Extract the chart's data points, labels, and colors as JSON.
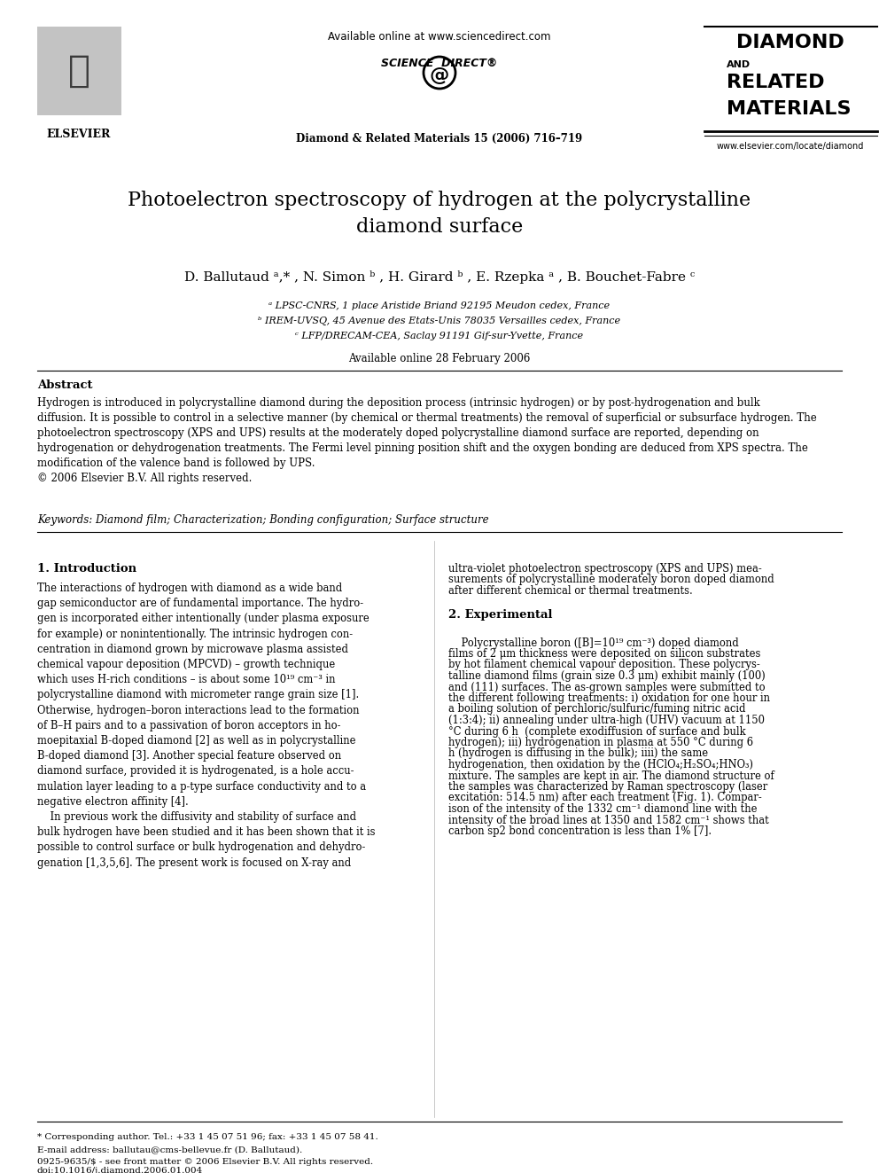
{
  "bg_color": "#ffffff",
  "title": "Photoelectron spectroscopy of hydrogen at the polycrystalline\ndiamond surface",
  "authors": "D. Ballutaud ᵃ,* , N. Simon ᵇ , H. Girard ᵇ , E. Rzepka ᵃ , B. Bouchet-Fabre ᶜ",
  "affil_a": "ᵃ LPSC-CNRS, 1 place Aristide Briand 92195 Meudon cedex, France",
  "affil_b": "ᵇ IREM-UVSQ, 45 Avenue des Etats-Unis 78035 Versailles cedex, France",
  "affil_c": "ᶜ LFP/DRECAM-CEA, Saclay 91191 Gif-sur-Yvette, France",
  "available_online": "Available online 28 February 2006",
  "header_available": "Available online at www.sciencedirect.com",
  "journal_ref": "Diamond & Related Materials 15 (2006) 716–719",
  "journal_name_line1": "DIAMOND",
  "journal_name_line2": "AND",
  "journal_name_line3": "RELATED",
  "journal_name_line4": "MATERIALS",
  "journal_website": "www.elsevier.com/locate/diamond",
  "elsevier_text": "ELSEVIER",
  "abstract_heading": "Abstract",
  "abstract_text": "Hydrogen is introduced in polycrystalline diamond during the deposition process (intrinsic hydrogen) or by post-hydrogenation and bulk\ndiffusion. It is possible to control in a selective manner (by chemical or thermal treatments) the removal of superficial or subsurface hydrogen. The\nphotoelectron spectroscopy (XPS and UPS) results at the moderately doped polycrystalline diamond surface are reported, depending on\nhydrogenation or dehydrogenation treatments. The Fermi level pinning position shift and the oxygen bonding are deduced from XPS spectra. The\nmodification of the valence band is followed by UPS.\n© 2006 Elsevier B.V. All rights reserved.",
  "keywords_text": "Keywords: Diamond film; Characterization; Bonding configuration; Surface structure",
  "section1_heading": "1. Introduction",
  "section1_col1": "The interactions of hydrogen with diamond as a wide band\ngap semiconductor are of fundamental importance. The hydro-\ngen is incorporated either intentionally (under plasma exposure\nfor example) or nonintentionally. The intrinsic hydrogen con-\ncentration in diamond grown by microwave plasma assisted\nchemical vapour deposition (MPCVD) – growth technique\nwhich uses H-rich conditions – is about some 10¹⁹ cm⁻³ in\npolycrystalline diamond with micrometer range grain size [1].\nOtherwise, hydrogen–boron interactions lead to the formation\nof B–H pairs and to a passivation of boron acceptors in ho-\nmoepitaxial B-doped diamond [2] as well as in polycrystalline\nB-doped diamond [3]. Another special feature observed on\ndiamond surface, provided it is hydrogenated, is a hole accu-\nmulation layer leading to a p-type surface conductivity and to a\nnegative electron affinity [4].\n    In previous work the diffusivity and stability of surface and\nbulk hydrogen have been studied and it has been shown that it is\npossible to control surface or bulk hydrogenation and dehydro-\ngenation [1,3,5,6]. The present work is focused on X-ray and",
  "section1_col2": "ultra-violet photoelectron spectroscopy (XPS and UPS) mea-\nsurements of polycrystalline moderately boron doped diamond\nafter different chemical or thermal treatments.\n\n2. Experimental\n\n    Polycrystalline boron ([B]=10¹⁹ cm⁻³) doped diamond\nfilms of 2 μm thickness were deposited on silicon substrates\nby hot filament chemical vapour deposition. These polycrys-\ntalline diamond films (grain size 0.3 μm) exhibit mainly (100)\nand (111) surfaces. The as-grown samples were submitted to\nthe different following treatments: i) oxidation for one hour in\na boiling solution of perchloric/sulfuric/fuming nitric acid\n(1:3:4); ii) annealing under ultra-high (UHV) vacuum at 1150\n°C during 6 h  (complete exodiffusion of surface and bulk\nhydrogen); iii) hydrogenation in plasma at 550 °C during 6\nh (hydrogen is diffusing in the bulk); iiii) the same\nhydrogenation, then oxidation by the (HClO₄;H₂SO₄;HNO₃)\nmixture. The samples are kept in air. The diamond structure of\nthe samples was characterized by Raman spectroscopy (laser\nexcitation: 514.5 nm) after each treatment (Fig. 1). Compar-\nison of the intensity of the 1332 cm⁻¹ diamond line with the\nintensity of the broad lines at 1350 and 1582 cm⁻¹ shows that\ncarbon sp2 bond concentration is less than 1% [7].",
  "footnote1": "* Corresponding author. Tel.: +33 1 45 07 51 96; fax: +33 1 45 07 58 41.",
  "footnote2": "E-mail address: ballutau@cms-bellevue.fr (D. Ballutaud).",
  "footnote3": "0925-9635/$ - see front matter © 2006 Elsevier B.V. All rights reserved.",
  "footnote4": "doi:10.1016/j.diamond.2006.01.004"
}
